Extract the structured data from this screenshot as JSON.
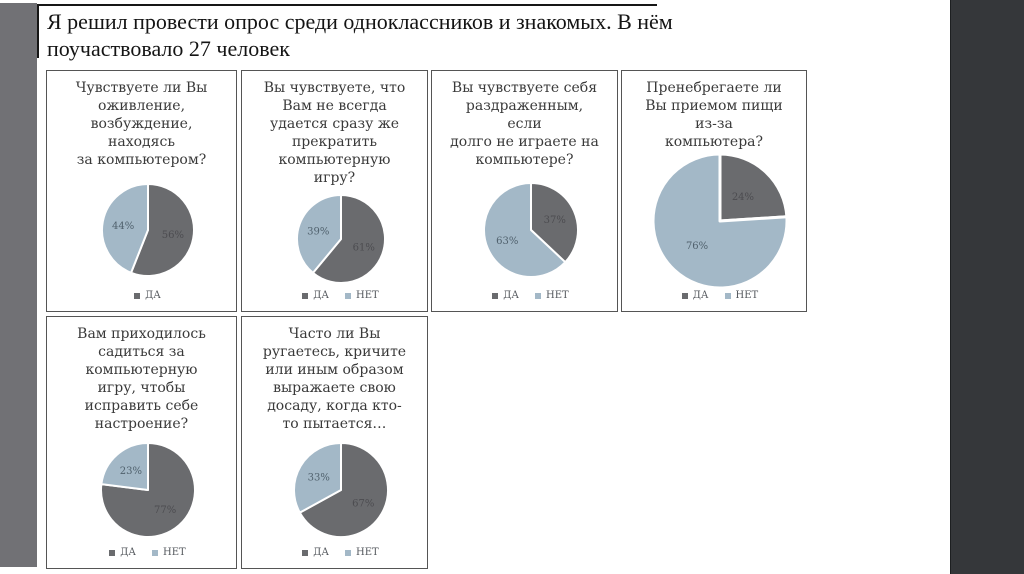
{
  "window": {
    "slide_bg": "#ffffff",
    "left_bar_color": "#717175",
    "right_panel_color": "#35373a",
    "title_border_color": "#161616",
    "card_border_color": "#555555"
  },
  "title": {
    "text": "Я решил провести опрос среди одноклассников и знакомых. В нём поучаствовало 27 человек"
  },
  "colors": {
    "yes_slice": "#6a6b6e",
    "no_slice": "#a3b8c7",
    "separator": "#ffffff"
  },
  "chart_data": [
    {
      "type": "pie",
      "question": "Чувствуете ли Вы\nоживление,\nвозбуждение,\nнаходясь\nза компьютером?",
      "slices": [
        {
          "label": "ДА",
          "value": 56,
          "color": "#6a6b6e",
          "label_color": "#4c4c50"
        },
        {
          "label": "НЕТ",
          "value": 44,
          "color": "#a3b8c7",
          "label_color": "#50616d"
        }
      ],
      "legend": [
        "ДА"
      ],
      "diameter": 92
    },
    {
      "type": "pie",
      "question": "Вы чувствуете, что\nВам не всегда\nудается сразу же\nпрекратить\nкомпьютерную\nигру?",
      "slices": [
        {
          "label": "ДА",
          "value": 61,
          "color": "#6a6b6e",
          "label_color": "#4c4c50"
        },
        {
          "label": "НЕТ",
          "value": 39,
          "color": "#a3b8c7",
          "label_color": "#50616d"
        }
      ],
      "legend": [
        "ДА",
        "НЕТ"
      ],
      "diameter": 88
    },
    {
      "type": "pie",
      "question": "Вы чувствуете себя\nраздраженным,\nесли\nдолго не играете на\nкомпьютере?",
      "slices": [
        {
          "label": "ДА",
          "value": 37,
          "color": "#6a6b6e",
          "label_color": "#4c4c50"
        },
        {
          "label": "НЕТ",
          "value": 63,
          "color": "#a3b8c7",
          "label_color": "#50616d"
        }
      ],
      "legend": [
        "ДА",
        "НЕТ"
      ],
      "diameter": 94
    },
    {
      "type": "pie",
      "question": "Пренебрегаете ли\nВы приемом пищи\nиз-за\nкомпьютера?",
      "slices": [
        {
          "label": "ДА",
          "value": 24,
          "color": "#6a6b6e",
          "label_color": "#4c4c50"
        },
        {
          "label": "НЕТ",
          "value": 76,
          "color": "#a3b8c7",
          "label_color": "#50616d"
        }
      ],
      "legend": [
        "ДА",
        "НЕТ"
      ],
      "diameter": 134
    },
    {
      "type": "pie",
      "question": "Вам приходилось\nсадиться за\nкомпьютерную\nигру, чтобы\nисправить себе\nнастроение?",
      "slices": [
        {
          "label": "ДА",
          "value": 77,
          "color": "#6a6b6e",
          "label_color": "#4c4c50"
        },
        {
          "label": "НЕТ",
          "value": 23,
          "color": "#a3b8c7",
          "label_color": "#50616d"
        }
      ],
      "legend": [
        "ДА",
        "НЕТ"
      ],
      "diameter": 94
    },
    {
      "type": "pie",
      "question": "Часто ли Вы\nругаетесь, кричите\nили иным образом\nвыражаете свою\nдосаду, когда кто-\nто пытается…",
      "slices": [
        {
          "label": "ДА",
          "value": 67,
          "color": "#6a6b6e",
          "label_color": "#4c4c50"
        },
        {
          "label": "НЕТ",
          "value": 33,
          "color": "#a3b8c7",
          "label_color": "#50616d"
        }
      ],
      "legend": [
        "ДА",
        "НЕТ"
      ],
      "diameter": 94
    }
  ]
}
